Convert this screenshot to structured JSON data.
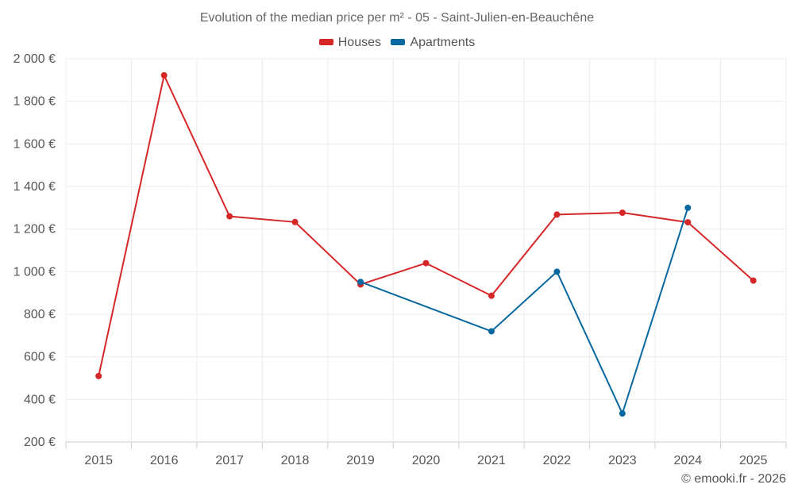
{
  "chart_data": {
    "type": "line",
    "title": "Evolution of the median price per m² - 05 - Saint-Julien-en-Beauchêne",
    "categories": [
      "2015",
      "2016",
      "2017",
      "2018",
      "2019",
      "2020",
      "2021",
      "2022",
      "2023",
      "2024",
      "2025"
    ],
    "series": [
      {
        "name": "Houses",
        "color": "#d62728",
        "values": [
          510,
          1922,
          1260,
          1233,
          940,
          1040,
          887,
          1268,
          1277,
          1232,
          958
        ]
      },
      {
        "name": "Apartments",
        "color": "#0868a0",
        "values": [
          null,
          null,
          null,
          null,
          952,
          null,
          720,
          1000,
          334,
          1300,
          null
        ]
      }
    ],
    "ylim": [
      200,
      2000
    ],
    "yticks": [
      200,
      400,
      600,
      800,
      1000,
      1200,
      1400,
      1600,
      1800,
      2000
    ],
    "ytick_labels": [
      "200 €",
      "400 €",
      "600 €",
      "800 €",
      "1 000 €",
      "1 200 €",
      "1 400 €",
      "1 600 €",
      "1 800 €",
      "2 000 €"
    ],
    "grid": true,
    "legend_position": "top-center",
    "xlabel": "",
    "ylabel": ""
  },
  "credit": "© emooki.fr - 2026"
}
